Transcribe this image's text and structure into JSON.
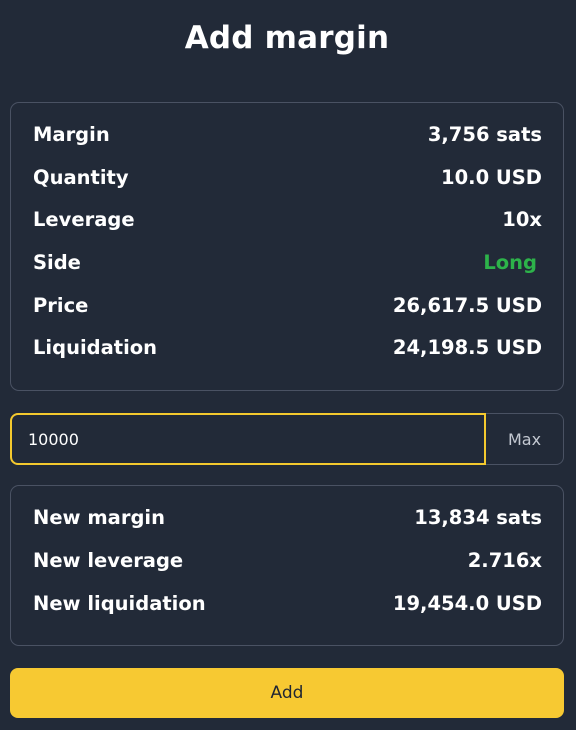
{
  "title": "Add margin",
  "position": {
    "rows": [
      {
        "label": "Margin",
        "value": "3,756 sats"
      },
      {
        "label": "Quantity",
        "value": "10.0 USD"
      },
      {
        "label": "Leverage",
        "value": "10x"
      },
      {
        "label": "Side",
        "value": "Long"
      },
      {
        "label": "Price",
        "value": "26,617.5 USD"
      },
      {
        "label": "Liquidation",
        "value": "24,198.5 USD"
      }
    ]
  },
  "amount": {
    "value": "10000",
    "max_label": "Max"
  },
  "result": {
    "rows": [
      {
        "label": "New margin",
        "value": "13,834 sats"
      },
      {
        "label": "New leverage",
        "value": "2.716x"
      },
      {
        "label": "New liquidation",
        "value": "19,454.0 USD"
      }
    ]
  },
  "add_label": "Add",
  "colors": {
    "background": "#222a38",
    "accent": "#f7c932",
    "long": "#2db34a",
    "border": "#4a5263"
  }
}
